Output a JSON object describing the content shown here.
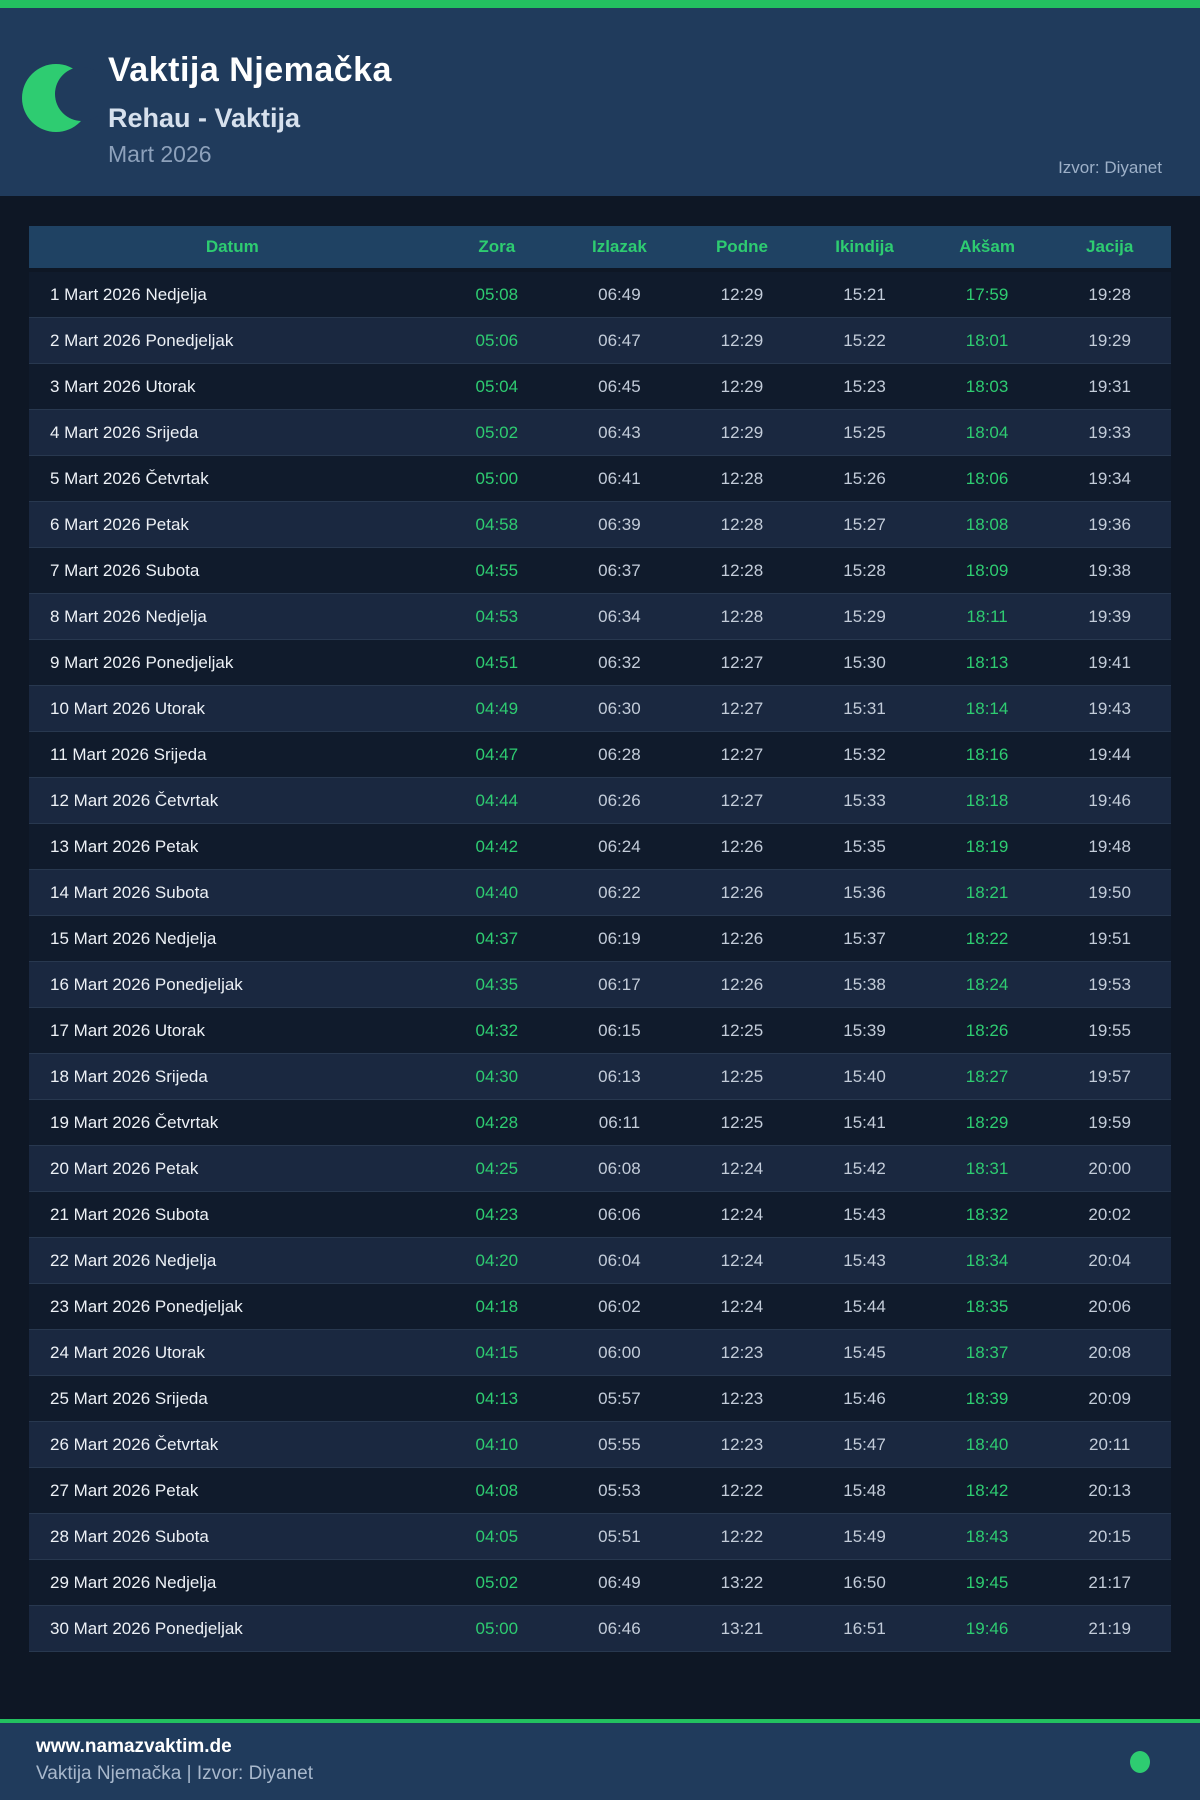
{
  "header": {
    "title": "Vaktija Njemačka",
    "subtitle": "Rehau - Vaktija",
    "month": "Mart 2026",
    "source": "Izvor: Diyanet"
  },
  "table": {
    "columns": [
      "Datum",
      "Zora",
      "Izlazak",
      "Podne",
      "Ikindija",
      "Akšam",
      "Jacija"
    ],
    "column_keys": [
      "zora",
      "izlazak",
      "podne",
      "ikindija",
      "aksam",
      "jacija"
    ],
    "green_columns": [
      "zora",
      "aksam"
    ],
    "rows": [
      {
        "datum": "1 Mart 2026 Nedjelja",
        "zora": "05:08",
        "izlazak": "06:49",
        "podne": "12:29",
        "ikindija": "15:21",
        "aksam": "17:59",
        "jacija": "19:28"
      },
      {
        "datum": "2 Mart 2026 Ponedjeljak",
        "zora": "05:06",
        "izlazak": "06:47",
        "podne": "12:29",
        "ikindija": "15:22",
        "aksam": "18:01",
        "jacija": "19:29"
      },
      {
        "datum": "3 Mart 2026 Utorak",
        "zora": "05:04",
        "izlazak": "06:45",
        "podne": "12:29",
        "ikindija": "15:23",
        "aksam": "18:03",
        "jacija": "19:31"
      },
      {
        "datum": "4 Mart 2026 Srijeda",
        "zora": "05:02",
        "izlazak": "06:43",
        "podne": "12:29",
        "ikindija": "15:25",
        "aksam": "18:04",
        "jacija": "19:33"
      },
      {
        "datum": "5 Mart 2026 Četvrtak",
        "zora": "05:00",
        "izlazak": "06:41",
        "podne": "12:28",
        "ikindija": "15:26",
        "aksam": "18:06",
        "jacija": "19:34"
      },
      {
        "datum": "6 Mart 2026 Petak",
        "zora": "04:58",
        "izlazak": "06:39",
        "podne": "12:28",
        "ikindija": "15:27",
        "aksam": "18:08",
        "jacija": "19:36"
      },
      {
        "datum": "7 Mart 2026 Subota",
        "zora": "04:55",
        "izlazak": "06:37",
        "podne": "12:28",
        "ikindija": "15:28",
        "aksam": "18:09",
        "jacija": "19:38"
      },
      {
        "datum": "8 Mart 2026 Nedjelja",
        "zora": "04:53",
        "izlazak": "06:34",
        "podne": "12:28",
        "ikindija": "15:29",
        "aksam": "18:11",
        "jacija": "19:39"
      },
      {
        "datum": "9 Mart 2026 Ponedjeljak",
        "zora": "04:51",
        "izlazak": "06:32",
        "podne": "12:27",
        "ikindija": "15:30",
        "aksam": "18:13",
        "jacija": "19:41"
      },
      {
        "datum": "10 Mart 2026 Utorak",
        "zora": "04:49",
        "izlazak": "06:30",
        "podne": "12:27",
        "ikindija": "15:31",
        "aksam": "18:14",
        "jacija": "19:43"
      },
      {
        "datum": "11 Mart 2026 Srijeda",
        "zora": "04:47",
        "izlazak": "06:28",
        "podne": "12:27",
        "ikindija": "15:32",
        "aksam": "18:16",
        "jacija": "19:44"
      },
      {
        "datum": "12 Mart 2026 Četvrtak",
        "zora": "04:44",
        "izlazak": "06:26",
        "podne": "12:27",
        "ikindija": "15:33",
        "aksam": "18:18",
        "jacija": "19:46"
      },
      {
        "datum": "13 Mart 2026 Petak",
        "zora": "04:42",
        "izlazak": "06:24",
        "podne": "12:26",
        "ikindija": "15:35",
        "aksam": "18:19",
        "jacija": "19:48"
      },
      {
        "datum": "14 Mart 2026 Subota",
        "zora": "04:40",
        "izlazak": "06:22",
        "podne": "12:26",
        "ikindija": "15:36",
        "aksam": "18:21",
        "jacija": "19:50"
      },
      {
        "datum": "15 Mart 2026 Nedjelja",
        "zora": "04:37",
        "izlazak": "06:19",
        "podne": "12:26",
        "ikindija": "15:37",
        "aksam": "18:22",
        "jacija": "19:51"
      },
      {
        "datum": "16 Mart 2026 Ponedjeljak",
        "zora": "04:35",
        "izlazak": "06:17",
        "podne": "12:26",
        "ikindija": "15:38",
        "aksam": "18:24",
        "jacija": "19:53"
      },
      {
        "datum": "17 Mart 2026 Utorak",
        "zora": "04:32",
        "izlazak": "06:15",
        "podne": "12:25",
        "ikindija": "15:39",
        "aksam": "18:26",
        "jacija": "19:55"
      },
      {
        "datum": "18 Mart 2026 Srijeda",
        "zora": "04:30",
        "izlazak": "06:13",
        "podne": "12:25",
        "ikindija": "15:40",
        "aksam": "18:27",
        "jacija": "19:57"
      },
      {
        "datum": "19 Mart 2026 Četvrtak",
        "zora": "04:28",
        "izlazak": "06:11",
        "podne": "12:25",
        "ikindija": "15:41",
        "aksam": "18:29",
        "jacija": "19:59"
      },
      {
        "datum": "20 Mart 2026 Petak",
        "zora": "04:25",
        "izlazak": "06:08",
        "podne": "12:24",
        "ikindija": "15:42",
        "aksam": "18:31",
        "jacija": "20:00"
      },
      {
        "datum": "21 Mart 2026 Subota",
        "zora": "04:23",
        "izlazak": "06:06",
        "podne": "12:24",
        "ikindija": "15:43",
        "aksam": "18:32",
        "jacija": "20:02"
      },
      {
        "datum": "22 Mart 2026 Nedjelja",
        "zora": "04:20",
        "izlazak": "06:04",
        "podne": "12:24",
        "ikindija": "15:43",
        "aksam": "18:34",
        "jacija": "20:04"
      },
      {
        "datum": "23 Mart 2026 Ponedjeljak",
        "zora": "04:18",
        "izlazak": "06:02",
        "podne": "12:24",
        "ikindija": "15:44",
        "aksam": "18:35",
        "jacija": "20:06"
      },
      {
        "datum": "24 Mart 2026 Utorak",
        "zora": "04:15",
        "izlazak": "06:00",
        "podne": "12:23",
        "ikindija": "15:45",
        "aksam": "18:37",
        "jacija": "20:08"
      },
      {
        "datum": "25 Mart 2026 Srijeda",
        "zora": "04:13",
        "izlazak": "05:57",
        "podne": "12:23",
        "ikindija": "15:46",
        "aksam": "18:39",
        "jacija": "20:09"
      },
      {
        "datum": "26 Mart 2026 Četvrtak",
        "zora": "04:10",
        "izlazak": "05:55",
        "podne": "12:23",
        "ikindija": "15:47",
        "aksam": "18:40",
        "jacija": "20:11"
      },
      {
        "datum": "27 Mart 2026 Petak",
        "zora": "04:08",
        "izlazak": "05:53",
        "podne": "12:22",
        "ikindija": "15:48",
        "aksam": "18:42",
        "jacija": "20:13"
      },
      {
        "datum": "28 Mart 2026 Subota",
        "zora": "04:05",
        "izlazak": "05:51",
        "podne": "12:22",
        "ikindija": "15:49",
        "aksam": "18:43",
        "jacija": "20:15"
      },
      {
        "datum": "29 Mart 2026 Nedjelja",
        "zora": "05:02",
        "izlazak": "06:49",
        "podne": "13:22",
        "ikindija": "16:50",
        "aksam": "19:45",
        "jacija": "21:17"
      },
      {
        "datum": "30 Mart 2026 Ponedjeljak",
        "zora": "05:00",
        "izlazak": "06:46",
        "podne": "13:21",
        "ikindija": "16:51",
        "aksam": "19:46",
        "jacija": "21:19"
      }
    ]
  },
  "footer": {
    "website": "www.namazvaktim.de",
    "tagline": "Vaktija Njemačka | Izvor: Diyanet"
  },
  "colors": {
    "accent_green": "#2ecc71",
    "bar_green": "#23c160",
    "header_navy": "#203b5c",
    "page_bg": "#0e1725",
    "row_dark": "#101b2c",
    "row_alt": "#1a2840",
    "table_header_bg": "#1f4263"
  }
}
